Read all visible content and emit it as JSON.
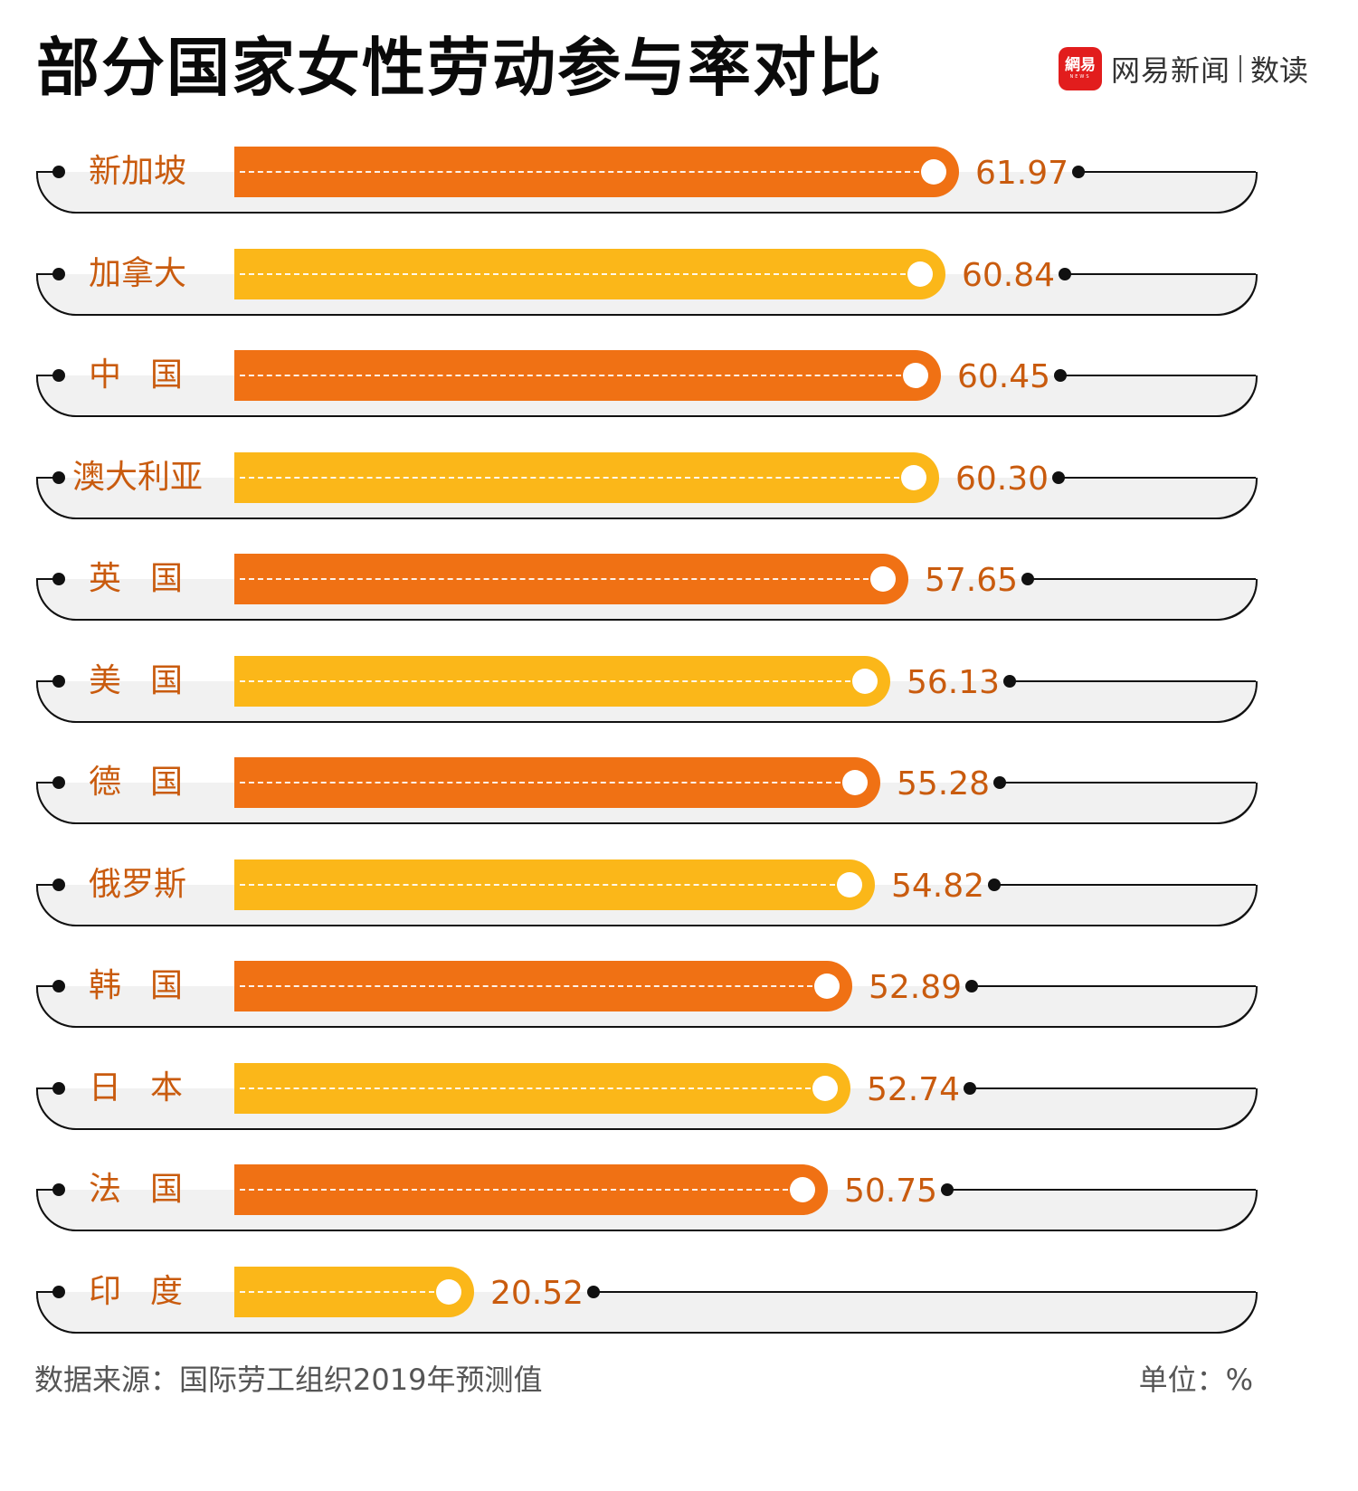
{
  "header": {
    "title": "部分国家女性劳动参与率对比",
    "brand": {
      "logo_line1": "網易",
      "logo_line2": "NEWS",
      "name": "网易新闻",
      "sub": "数读"
    }
  },
  "colors": {
    "orange": "#f07114",
    "yellow": "#fbb719",
    "label": "#c95b0e",
    "track": "#f1f1f1"
  },
  "rows": [
    {
      "label": "新加坡",
      "value": "61.97",
      "color": "orange",
      "label_style": "normal"
    },
    {
      "label": "加拿大",
      "value": "60.84",
      "color": "yellow",
      "label_style": "normal"
    },
    {
      "label": "中国",
      "value": "60.45",
      "color": "orange",
      "label_style": "spaced"
    },
    {
      "label": "澳大利亚",
      "value": "60.30",
      "color": "yellow",
      "label_style": "wide"
    },
    {
      "label": "英国",
      "value": "57.65",
      "color": "orange",
      "label_style": "spaced"
    },
    {
      "label": "美国",
      "value": "56.13",
      "color": "yellow",
      "label_style": "spaced"
    },
    {
      "label": "德国",
      "value": "55.28",
      "color": "orange",
      "label_style": "spaced"
    },
    {
      "label": "俄罗斯",
      "value": "54.82",
      "color": "yellow",
      "label_style": "normal"
    },
    {
      "label": "韩国",
      "value": "52.89",
      "color": "orange",
      "label_style": "spaced"
    },
    {
      "label": "日本",
      "value": "52.74",
      "color": "yellow",
      "label_style": "spaced"
    },
    {
      "label": "法国",
      "value": "50.75",
      "color": "orange",
      "label_style": "spaced"
    },
    {
      "label": "印度",
      "value": "20.52",
      "color": "yellow",
      "label_style": "spaced"
    }
  ],
  "footer": {
    "source": "数据来源：国际劳工组织2019年预测值",
    "unit": "单位：%"
  },
  "chart_data": {
    "type": "bar",
    "orientation": "horizontal",
    "title": "部分国家女性劳动参与率对比",
    "categories": [
      "新加坡",
      "加拿大",
      "中国",
      "澳大利亚",
      "英国",
      "美国",
      "德国",
      "俄罗斯",
      "韩国",
      "日本",
      "法国",
      "印度"
    ],
    "values": [
      61.97,
      60.84,
      60.45,
      60.3,
      57.65,
      56.13,
      55.28,
      54.82,
      52.89,
      52.74,
      50.75,
      20.52
    ],
    "xlabel": "",
    "ylabel": "",
    "unit": "%",
    "source": "国际劳工组织2019年预测值",
    "bar_colors_alternating": [
      "#f07114",
      "#fbb719"
    ],
    "grid": false,
    "legend": null
  }
}
